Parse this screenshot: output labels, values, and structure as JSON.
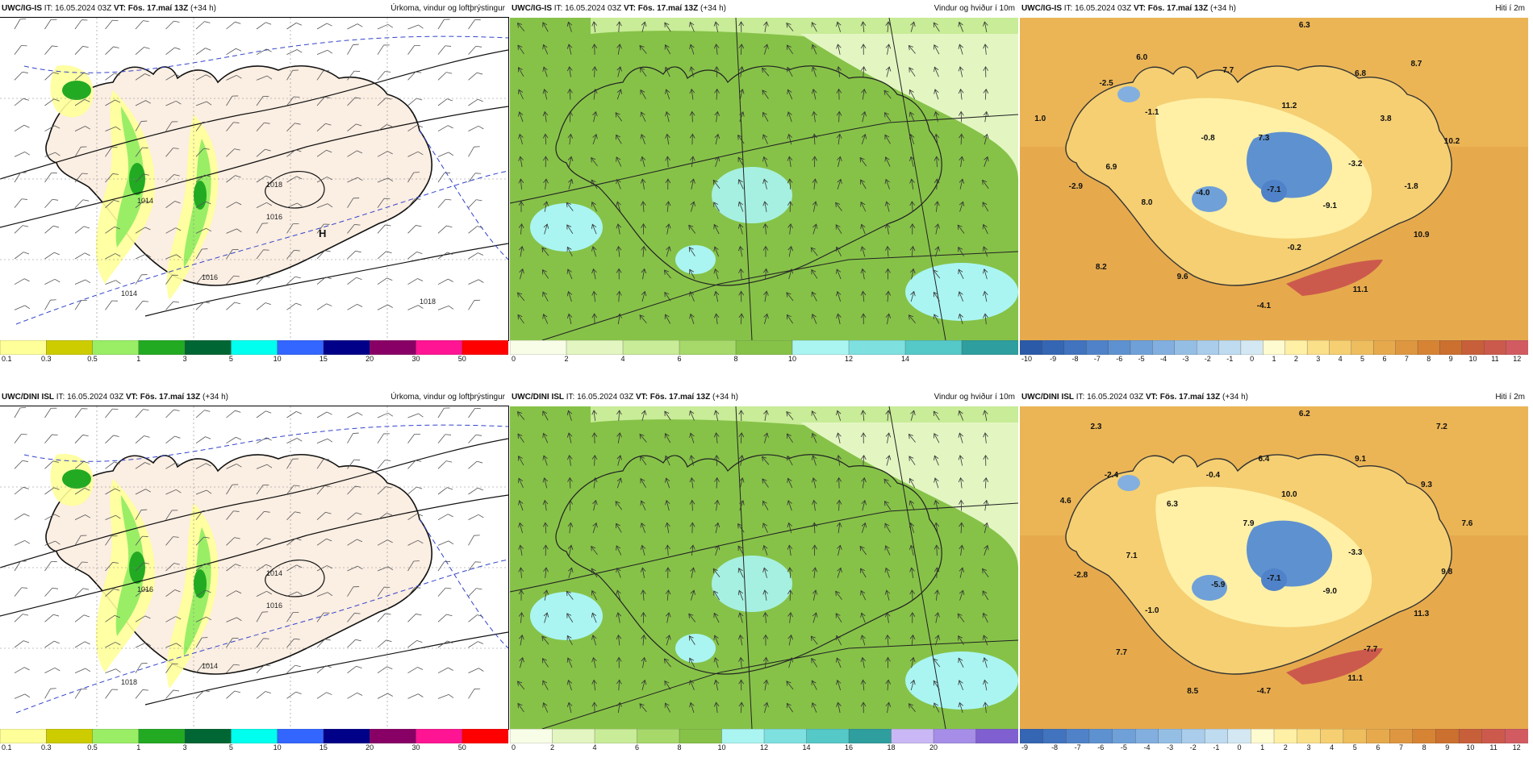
{
  "panels": [
    {
      "model": "UWC/IG-IS",
      "it": "IT: 16.05.2024 03Z",
      "vt": "VT: Fös. 17.maí 13Z",
      "step": "(+34 h)",
      "title": "Úrkoma, vindur og loftþrýstingur",
      "kind": "precip",
      "ticks": [
        "0.1",
        "0.3",
        "0.5",
        "1",
        "3",
        "5",
        "10",
        "15",
        "20",
        "30",
        "50"
      ],
      "colors": [
        "#ffff99",
        "#cccc00",
        "#99ee66",
        "#22aa22",
        "#006633",
        "#00ffee",
        "#3366ff",
        "#000088",
        "#880066",
        "#ff1493",
        "#ff0000"
      ],
      "pressure_labels": [
        "1018",
        "1014",
        "1016",
        "1016",
        "1014",
        "1018"
      ],
      "high_label": "H"
    },
    {
      "model": "UWC/IG-IS",
      "it": "IT: 16.05.2024 03Z",
      "vt": "VT: Fös. 17.maí 13Z",
      "step": "(+34 h)",
      "title": "Vindur og hviður í 10m",
      "kind": "wind",
      "ticks": [
        "0",
        "2",
        "4",
        "6",
        "8",
        "10",
        "12",
        "14"
      ],
      "colors": [
        "#f7fde6",
        "#e3f6c2",
        "#c8ec97",
        "#a6d96a",
        "#86c248",
        "#aaf5f2",
        "#7fe0e0",
        "#55c8c8",
        "#2e9e9e"
      ]
    },
    {
      "model": "UWC/IG-IS",
      "it": "IT: 16.05.2024 03Z",
      "vt": "VT: Fös. 17.maí 13Z",
      "step": "(+34 h)",
      "title": "Hiti í 2m",
      "kind": "temp",
      "ticks": [
        "-10",
        "-9",
        "-8",
        "-7",
        "-6",
        "-5",
        "-4",
        "-3",
        "-2",
        "-1",
        "0",
        "1",
        "2",
        "3",
        "4",
        "5",
        "6",
        "7",
        "8",
        "9",
        "10",
        "11",
        "12"
      ],
      "colors": [
        "#2b5aa8",
        "#3566b4",
        "#4173be",
        "#4f82c8",
        "#5e91d0",
        "#6fa0d8",
        "#82afdf",
        "#95bee5",
        "#a9cdeb",
        "#bedbf0",
        "#d4e8f3",
        "#fffbd0",
        "#fff0a6",
        "#fbe08a",
        "#f5cf72",
        "#eebd5e",
        "#e6aa4d",
        "#de9740",
        "#d68434",
        "#cc7030",
        "#c75f3a",
        "#cc5a4c",
        "#d25b62"
      ],
      "values": [
        {
          "t": "6.3",
          "x": 0.56,
          "y": 0.03
        },
        {
          "t": "6.0",
          "x": 0.24,
          "y": 0.13
        },
        {
          "t": "7.7",
          "x": 0.41,
          "y": 0.17
        },
        {
          "t": "8.7",
          "x": 0.78,
          "y": 0.15
        },
        {
          "t": "6.8",
          "x": 0.67,
          "y": 0.18
        },
        {
          "t": "-2.5",
          "x": 0.17,
          "y": 0.21
        },
        {
          "t": "-1.1",
          "x": 0.26,
          "y": 0.3
        },
        {
          "t": "11.2",
          "x": 0.53,
          "y": 0.28
        },
        {
          "t": "3.8",
          "x": 0.72,
          "y": 0.32
        },
        {
          "t": "1.0",
          "x": 0.04,
          "y": 0.32
        },
        {
          "t": "-0.8",
          "x": 0.37,
          "y": 0.38
        },
        {
          "t": "7.3",
          "x": 0.48,
          "y": 0.38
        },
        {
          "t": "10.2",
          "x": 0.85,
          "y": 0.39
        },
        {
          "t": "6.9",
          "x": 0.18,
          "y": 0.47
        },
        {
          "t": "-3.2",
          "x": 0.66,
          "y": 0.46
        },
        {
          "t": "-2.9",
          "x": 0.11,
          "y": 0.53
        },
        {
          "t": "-4.0",
          "x": 0.36,
          "y": 0.55
        },
        {
          "t": "-7.1",
          "x": 0.5,
          "y": 0.54
        },
        {
          "t": "-1.8",
          "x": 0.77,
          "y": 0.53
        },
        {
          "t": "8.0",
          "x": 0.25,
          "y": 0.58
        },
        {
          "t": "-9.1",
          "x": 0.61,
          "y": 0.59
        },
        {
          "t": "10.9",
          "x": 0.79,
          "y": 0.68
        },
        {
          "t": "-0.2",
          "x": 0.54,
          "y": 0.72
        },
        {
          "t": "8.2",
          "x": 0.16,
          "y": 0.78
        },
        {
          "t": "9.6",
          "x": 0.32,
          "y": 0.81
        },
        {
          "t": "11.1",
          "x": 0.67,
          "y": 0.85
        },
        {
          "t": "-4.1",
          "x": 0.48,
          "y": 0.9
        }
      ]
    },
    {
      "model": "UWC/DINI ISL",
      "it": "IT: 16.05.2024 03Z",
      "vt": "VT: Fös. 17.maí 13Z",
      "step": "(+34 h)",
      "title": "Úrkoma, vindur og loftþrýstingur",
      "kind": "precip",
      "ticks": [
        "0.1",
        "0.3",
        "0.5",
        "1",
        "3",
        "5",
        "10",
        "15",
        "20",
        "30",
        "50"
      ],
      "colors": [
        "#ffff99",
        "#cccc00",
        "#99ee66",
        "#22aa22",
        "#006633",
        "#00ffee",
        "#3366ff",
        "#000088",
        "#880066",
        "#ff1493",
        "#ff0000"
      ],
      "pressure_labels": [
        "1014",
        "1016",
        "1016",
        "1014",
        "1018"
      ],
      "high_label": ""
    },
    {
      "model": "UWC/DINI ISL",
      "it": "IT: 16.05.2024 03Z",
      "vt": "VT: Fös. 17.maí 13Z",
      "step": "(+34 h)",
      "title": "Vindur og hviður í 10m",
      "kind": "wind",
      "ticks": [
        "0",
        "2",
        "4",
        "6",
        "8",
        "10",
        "12",
        "14",
        "16",
        "18",
        "20"
      ],
      "colors": [
        "#f7fde6",
        "#e3f6c2",
        "#c8ec97",
        "#a6d96a",
        "#86c248",
        "#aaf5f2",
        "#7fe0e0",
        "#55c8c8",
        "#2e9e9e",
        "#c9b8f5",
        "#a58de8",
        "#8060d0"
      ]
    },
    {
      "model": "UWC/DINI ISL",
      "it": "IT: 16.05.2024 03Z",
      "vt": "VT: Fös. 17.maí 13Z",
      "step": "(+34 h)",
      "title": "Hiti í 2m",
      "kind": "temp",
      "ticks": [
        "-9",
        "-8",
        "-7",
        "-6",
        "-5",
        "-4",
        "-3",
        "-2",
        "-1",
        "0",
        "1",
        "2",
        "3",
        "4",
        "5",
        "6",
        "7",
        "8",
        "9",
        "10",
        "11",
        "12"
      ],
      "colors": [
        "#3566b4",
        "#4173be",
        "#4f82c8",
        "#5e91d0",
        "#6fa0d8",
        "#82afdf",
        "#95bee5",
        "#a9cdeb",
        "#bedbf0",
        "#d4e8f3",
        "#fffbd0",
        "#fff0a6",
        "#fbe08a",
        "#f5cf72",
        "#eebd5e",
        "#e6aa4d",
        "#de9740",
        "#d68434",
        "#cc7030",
        "#c75f3a",
        "#cc5a4c",
        "#d25b62"
      ],
      "values": [
        {
          "t": "2.3",
          "x": 0.15,
          "y": 0.07
        },
        {
          "t": "6.2",
          "x": 0.56,
          "y": 0.03
        },
        {
          "t": "7.2",
          "x": 0.83,
          "y": 0.07
        },
        {
          "t": "-2.4",
          "x": 0.18,
          "y": 0.22
        },
        {
          "t": "-0.4",
          "x": 0.38,
          "y": 0.22
        },
        {
          "t": "6.4",
          "x": 0.48,
          "y": 0.17
        },
        {
          "t": "9.1",
          "x": 0.67,
          "y": 0.17
        },
        {
          "t": "4.6",
          "x": 0.09,
          "y": 0.3
        },
        {
          "t": "6.3",
          "x": 0.3,
          "y": 0.31
        },
        {
          "t": "10.0",
          "x": 0.53,
          "y": 0.28
        },
        {
          "t": "9.3",
          "x": 0.8,
          "y": 0.25
        },
        {
          "t": "7.6",
          "x": 0.88,
          "y": 0.37
        },
        {
          "t": "7.9",
          "x": 0.45,
          "y": 0.37
        },
        {
          "t": "7.1",
          "x": 0.22,
          "y": 0.47
        },
        {
          "t": "-3.3",
          "x": 0.66,
          "y": 0.46
        },
        {
          "t": "-2.8",
          "x": 0.12,
          "y": 0.53
        },
        {
          "t": "9.8",
          "x": 0.84,
          "y": 0.52
        },
        {
          "t": "-5.9",
          "x": 0.39,
          "y": 0.56
        },
        {
          "t": "-7.1",
          "x": 0.5,
          "y": 0.54
        },
        {
          "t": "-9.0",
          "x": 0.61,
          "y": 0.58
        },
        {
          "t": "-1.0",
          "x": 0.26,
          "y": 0.64
        },
        {
          "t": "11.3",
          "x": 0.79,
          "y": 0.65
        },
        {
          "t": "7.7",
          "x": 0.2,
          "y": 0.77
        },
        {
          "t": "-7.7",
          "x": 0.69,
          "y": 0.76
        },
        {
          "t": "11.1",
          "x": 0.66,
          "y": 0.85
        },
        {
          "t": "8.5",
          "x": 0.34,
          "y": 0.89
        },
        {
          "t": "-4.7",
          "x": 0.48,
          "y": 0.89
        }
      ]
    }
  ]
}
